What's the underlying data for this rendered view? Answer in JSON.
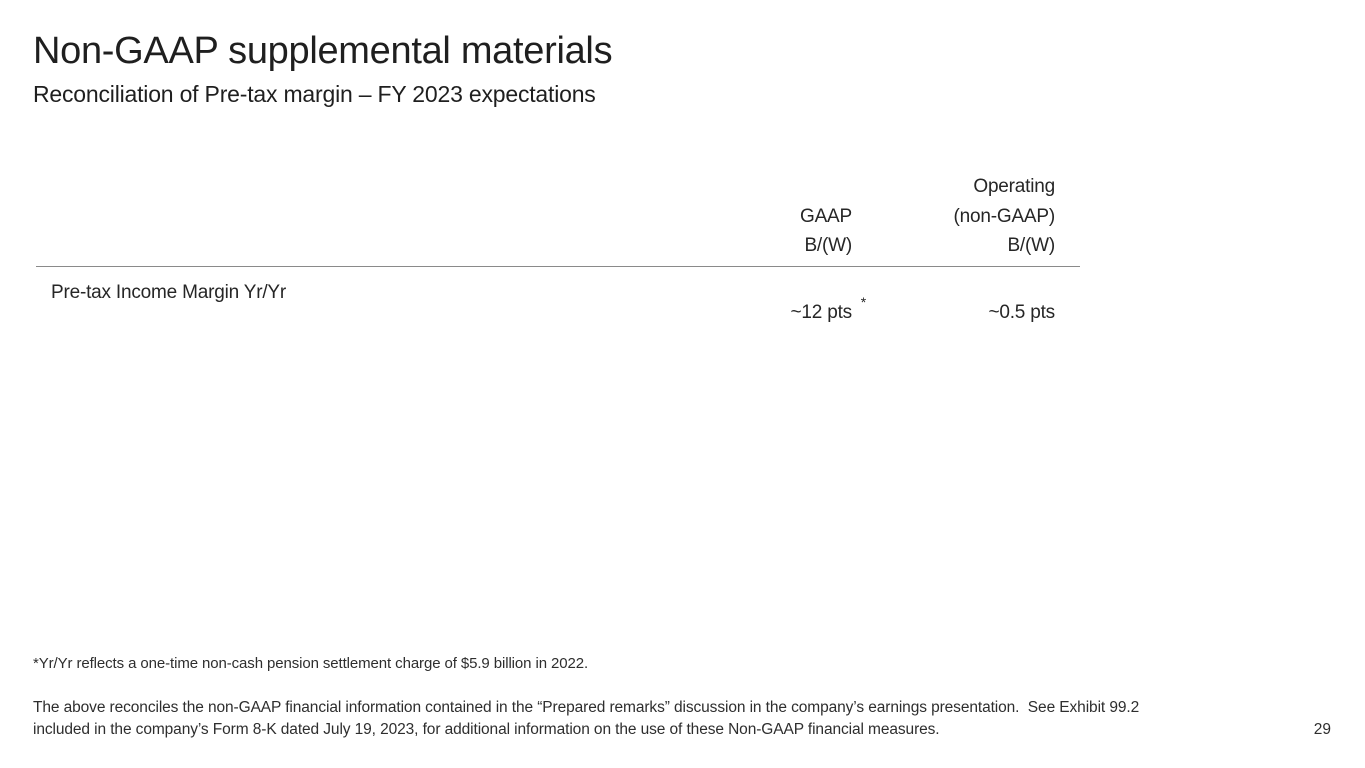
{
  "slide": {
    "title": "Non-GAAP supplemental materials",
    "subtitle": "Reconciliation of Pre-tax margin – FY 2023 expectations",
    "page_number": "29"
  },
  "table": {
    "header": {
      "col1_lines": [
        "GAAP",
        "B/(W)"
      ],
      "col2_lines": [
        "Operating",
        "(non-GAAP)",
        "B/(W)"
      ]
    },
    "rows": [
      {
        "label": "Pre-tax Income Margin Yr/Yr",
        "gaap_value": "~12 pts",
        "gaap_footnote_marker": "*",
        "operating_value": "~0.5 pts"
      }
    ]
  },
  "footnotes": {
    "pension_note": "*Yr/Yr reflects a one-time non-cash pension settlement charge of $5.9 billion in 2022.",
    "reconciliation_lines": [
      "The above reconciles the non-GAAP financial information contained in the “Prepared remarks” discussion in the company’s earnings presentation.  See Exhibit 99.2",
      "included in the company’s Form 8-K dated July 19, 2023, for additional information on the use of these Non-GAAP financial measures."
    ]
  },
  "colors": {
    "background": "#ffffff",
    "text_primary": "#1f1f1f",
    "text_secondary": "#2e2e2e",
    "divider": "#8a8a8a"
  }
}
